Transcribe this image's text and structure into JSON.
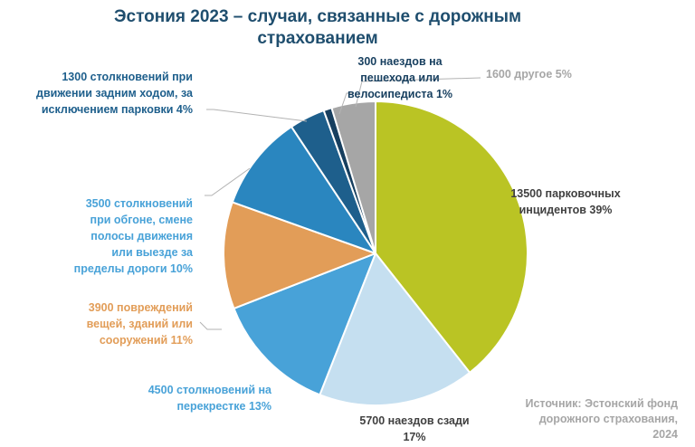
{
  "chart_data": {
    "type": "pie",
    "title": "Эстония 2023 – случаи, связанные с дорожным страхованием",
    "title_lines": [
      "Эстония 2023 – случаи, связанные с дорожным",
      "страхованием"
    ],
    "source_lines": [
      "Источник: Эстонский фонд",
      "дорожного страхования,",
      "2024"
    ],
    "slices": [
      {
        "category": "парковочных инцидентов",
        "value": 13500,
        "percent": 39,
        "color": "#bac424",
        "label_color": "#404040",
        "label_lines": [
          "13500 парковочных",
          "инцидентов 39%"
        ]
      },
      {
        "category": "наездов сзади",
        "value": 5700,
        "percent": 17,
        "color": "#c5dff0",
        "label_color": "#404040",
        "label_lines": [
          "5700 наездов сзади",
          "17%"
        ]
      },
      {
        "category": "столкновений на перекрестке",
        "value": 4500,
        "percent": 13,
        "color": "#48a2d8",
        "label_color": "#48a2d8",
        "label_lines": [
          "4500 столкновений на",
          "перекрестке 13%"
        ]
      },
      {
        "category": "повреждений вещей, зданий или сооружений",
        "value": 3900,
        "percent": 11,
        "color": "#e29d58",
        "label_color": "#e29d58",
        "label_lines": [
          "3900 повреждений",
          "вещей, зданий или",
          "сооружений 11%"
        ]
      },
      {
        "category": "столкновений при обгоне, смене полосы движения или выезде за пределы дороги",
        "value": 3500,
        "percent": 10,
        "color": "#2a86bf",
        "label_color": "#48a2d8",
        "label_lines": [
          "3500 столкновений",
          "при обгоне, смене",
          "полосы движения",
          "или выезде за",
          "пределы дороги 10%"
        ]
      },
      {
        "category": "столкновений при движении задним ходом, за исключением парковки",
        "value": 1300,
        "percent": 4,
        "color": "#1e5f8c",
        "label_color": "#1e5f8c",
        "label_lines": [
          "1300 столкновений при",
          "движении задним ходом, за",
          "исключением парковки 4%"
        ]
      },
      {
        "category": "наездов на пешехода или велосипедиста",
        "value": 300,
        "percent": 1,
        "color": "#173f5f",
        "label_color": "#173f5f",
        "label_lines": [
          "300 наездов на",
          "пешехода или",
          "велосипедиста 1%"
        ]
      },
      {
        "category": "другое",
        "value": 1600,
        "percent": 5,
        "color": "#a6a6a6",
        "label_color": "#a6a6a6",
        "label_lines": [
          "1600 другое 5%"
        ]
      }
    ]
  }
}
